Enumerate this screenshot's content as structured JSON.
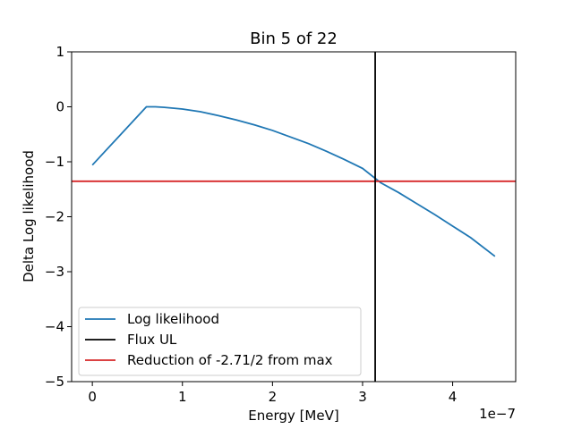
{
  "chart_data": {
    "type": "line",
    "title": "Bin 5 of 22",
    "xlabel": "Energy [MeV]",
    "ylabel": "Delta Log likelihood",
    "x_offset_label": "1e−7",
    "xlim": [
      -2.3e-08,
      4.7e-07
    ],
    "ylim": [
      -5,
      1
    ],
    "xticks": [
      0,
      1e-07,
      2e-07,
      3e-07,
      4e-07
    ],
    "xtick_labels": [
      "0",
      "1",
      "2",
      "3",
      "4"
    ],
    "yticks": [
      1,
      0,
      -1,
      -2,
      -3,
      -4,
      -5
    ],
    "ytick_labels": [
      "1",
      "0",
      "−1",
      "−2",
      "−3",
      "−4",
      "−5"
    ],
    "grid": false,
    "legend_position": "lower-left",
    "series": [
      {
        "name": "Log likelihood",
        "color": "#1f77b4",
        "x": [
          0,
          6e-08,
          7e-08,
          8e-08,
          1e-07,
          1.2e-07,
          1.4e-07,
          1.6e-07,
          1.8e-07,
          2e-07,
          2.2e-07,
          2.4e-07,
          2.6e-07,
          2.8e-07,
          3e-07,
          3.2e-07,
          3.4e-07,
          3.6e-07,
          3.8e-07,
          4e-07,
          4.2e-07,
          4.47e-07
        ],
        "y": [
          -1.06,
          0,
          0,
          -0.01,
          -0.04,
          -0.09,
          -0.16,
          -0.24,
          -0.33,
          -0.43,
          -0.55,
          -0.67,
          -0.81,
          -0.96,
          -1.12,
          -1.38,
          -1.56,
          -1.76,
          -1.96,
          -2.17,
          -2.38,
          -2.72
        ]
      }
    ],
    "vlines": [
      {
        "name": "Flux UL",
        "color": "#000000",
        "x": 3.14e-07
      }
    ],
    "hlines": [
      {
        "name": "Reduction of -2.71/2 from max",
        "color": "#d62728",
        "y": -1.355
      }
    ]
  }
}
